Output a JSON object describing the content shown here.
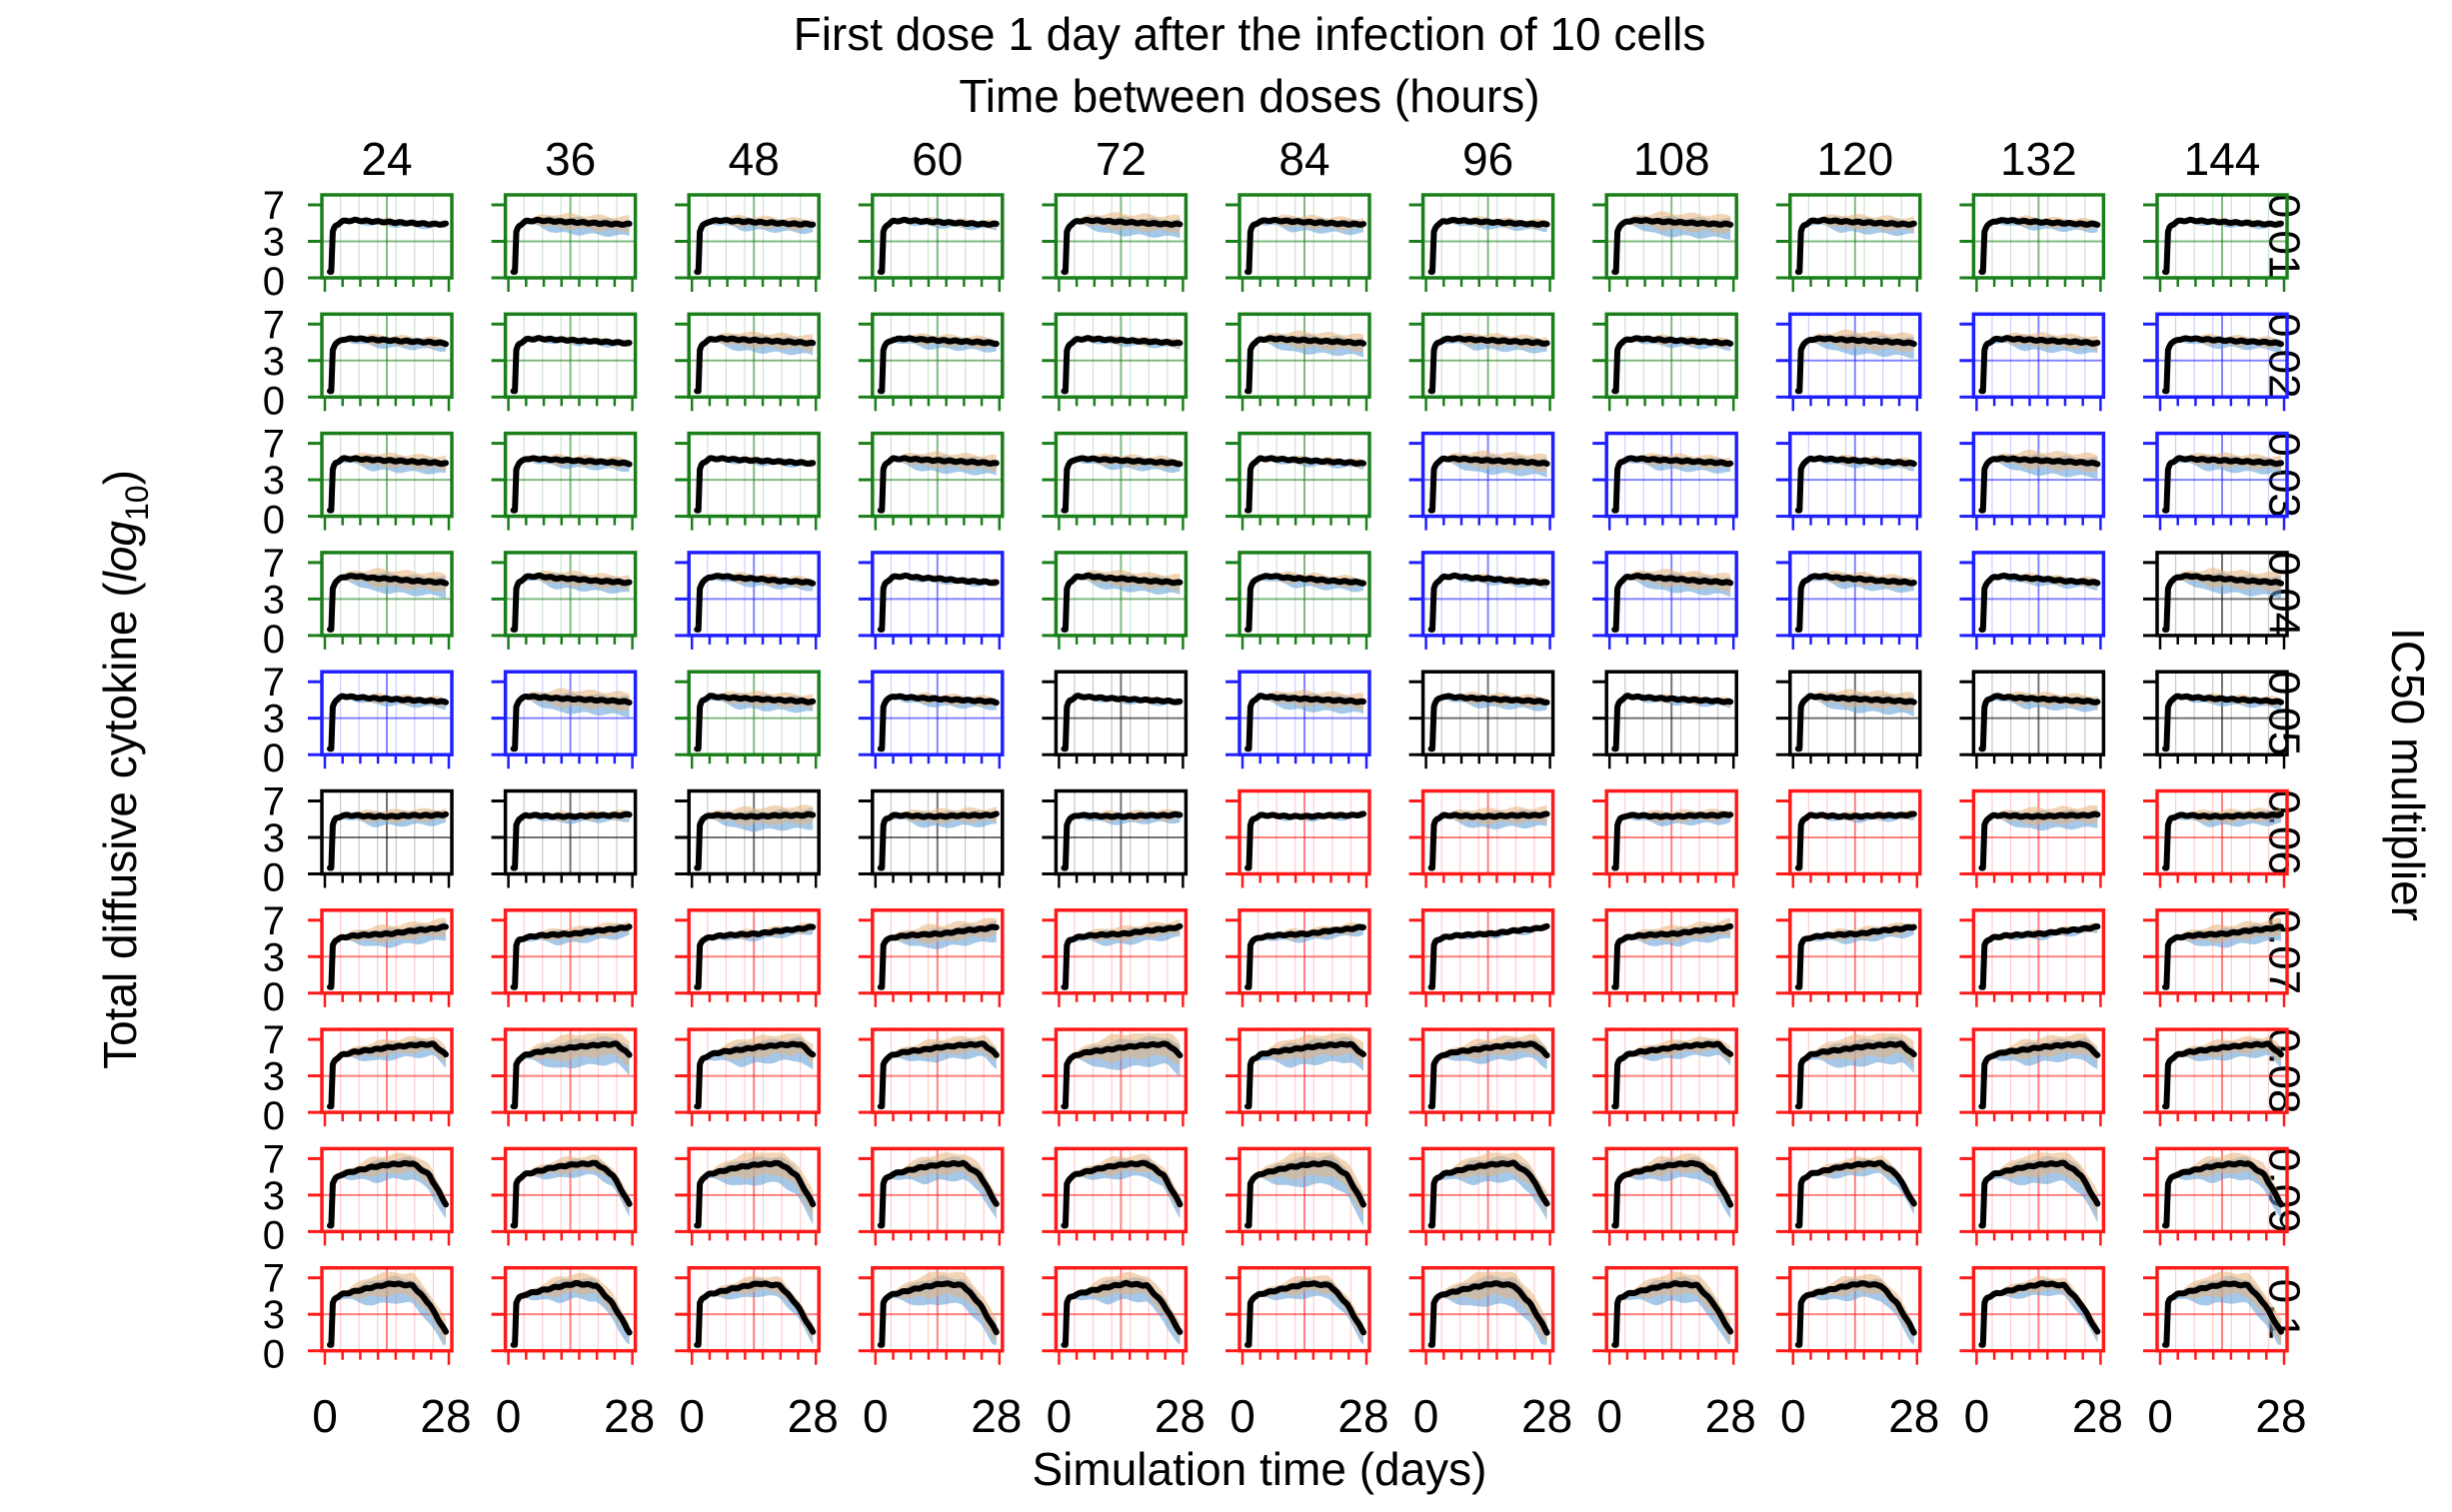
{
  "chart_data": {
    "type": "line",
    "title": "First dose 1 day after the infection of 10 cells",
    "subtitle": "Time between doses (hours)",
    "xlabel": "Simulation time (days)",
    "ylabel_main": "Total diffusive cytokine (",
    "ylabel_log": "log",
    "ylabel_sub": "10",
    "ylabel_close": ")",
    "right_label": "IC50 multiplier",
    "columns": [
      "24",
      "36",
      "48",
      "60",
      "72",
      "84",
      "96",
      "108",
      "120",
      "132",
      "144"
    ],
    "rows": [
      "0.01",
      "0.02",
      "0.03",
      "0.04",
      "0.05",
      "0.06",
      "0.07",
      "0.08",
      "0.09",
      "0.1"
    ],
    "x_ticks": [
      "0",
      "28"
    ],
    "y_ticks": [
      "0",
      "3",
      "7"
    ],
    "xlim": [
      0,
      28
    ],
    "ylim": [
      0,
      7.5
    ],
    "frame_colors": {
      "G": "#1a7f1a",
      "B": "#1f1fff",
      "K": "#000000",
      "R": "#ff1a1a"
    },
    "series_colors": {
      "mean": "#000000",
      "band_a": "#5b9bd5",
      "band_b": "#e8b37a"
    },
    "frame_grid": [
      "GGGGGGGGGGG",
      "GGGGGGGGBBB",
      "GGGGGGBBBBB",
      "GGBBGGBBBBK",
      "BBGBKBKKKKK",
      "KKKKKRRRRRR",
      "RRRRRRRRRRR",
      "RRRRRRRRRRR",
      "RRRRRRRRRRR",
      "RRRRRRRRRRR"
    ],
    "row_profiles": [
      {
        "t": [
          0,
          0.4,
          0.6,
          1.2,
          3,
          6,
          10,
          15,
          20,
          25,
          28
        ],
        "y": [
          0,
          0,
          4.0,
          4.7,
          5.2,
          5.3,
          5.2,
          5.1,
          5.0,
          4.9,
          4.9
        ]
      },
      {
        "t": [
          0,
          0.4,
          0.6,
          1.2,
          3,
          6,
          10,
          15,
          20,
          25,
          28
        ],
        "y": [
          0,
          0,
          4.1,
          4.8,
          5.3,
          5.4,
          5.3,
          5.2,
          5.1,
          5.0,
          4.9
        ]
      },
      {
        "t": [
          0,
          0.4,
          0.6,
          1.2,
          3,
          6,
          10,
          15,
          20,
          25,
          28
        ],
        "y": [
          0,
          0,
          4.1,
          4.8,
          5.3,
          5.3,
          5.2,
          5.1,
          5.0,
          4.9,
          4.8
        ]
      },
      {
        "t": [
          0,
          0.4,
          0.6,
          1.2,
          3,
          6,
          10,
          15,
          20,
          25,
          28
        ],
        "y": [
          0,
          0,
          4.1,
          4.8,
          5.4,
          5.5,
          5.3,
          5.2,
          5.0,
          4.9,
          4.8
        ]
      },
      {
        "t": [
          0,
          0.4,
          0.6,
          1.2,
          3,
          6,
          10,
          15,
          20,
          25,
          28
        ],
        "y": [
          0,
          0,
          4.2,
          4.9,
          5.4,
          5.3,
          5.2,
          5.1,
          5.0,
          4.9,
          4.8
        ]
      },
      {
        "t": [
          0,
          0.4,
          0.6,
          1.2,
          3,
          6,
          10,
          15,
          20,
          25,
          28
        ],
        "y": [
          0,
          0,
          4.3,
          5.0,
          5.4,
          5.4,
          5.3,
          5.3,
          5.4,
          5.4,
          5.5
        ]
      },
      {
        "t": [
          0,
          0.4,
          0.6,
          1.2,
          3,
          6,
          10,
          15,
          20,
          25,
          28
        ],
        "y": [
          0,
          0,
          4.2,
          4.8,
          5.1,
          5.3,
          5.4,
          5.5,
          5.8,
          6.0,
          6.2
        ]
      },
      {
        "t": [
          0,
          0.4,
          0.6,
          1.2,
          3,
          6,
          10,
          15,
          20,
          25,
          28
        ],
        "y": [
          0,
          0,
          4.2,
          4.8,
          5.3,
          5.6,
          5.8,
          6.1,
          6.3,
          6.4,
          5.3
        ]
      },
      {
        "t": [
          0,
          0.4,
          0.6,
          1.2,
          3,
          6,
          10,
          15,
          20,
          24,
          28
        ],
        "y": [
          0,
          0,
          4.2,
          4.8,
          5.3,
          5.6,
          6.0,
          6.3,
          6.4,
          5.2,
          2.2
        ]
      },
      {
        "t": [
          0,
          0.4,
          0.6,
          1.2,
          3,
          6,
          10,
          15,
          20,
          24,
          28
        ],
        "y": [
          0,
          0,
          4.2,
          4.8,
          5.2,
          5.5,
          5.9,
          6.3,
          6.1,
          4.2,
          1.3
        ]
      }
    ]
  }
}
